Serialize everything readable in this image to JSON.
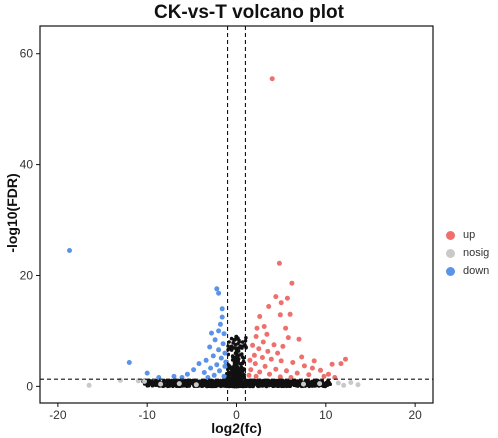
{
  "chart_data": {
    "type": "scatter",
    "title": "CK-vs-T volcano plot",
    "xlabel": "log2(fc)",
    "ylabel": "-log10(FDR)",
    "xlim": [
      -22,
      22
    ],
    "ylim": [
      -3,
      65
    ],
    "x_ticks": [
      -20,
      -10,
      0,
      10,
      20
    ],
    "y_ticks": [
      0,
      20,
      40,
      60
    ],
    "thresholds": {
      "x": [
        -1,
        1
      ],
      "y": 1.3
    },
    "grid": false,
    "legend_position": "right",
    "series": [
      {
        "name": "up",
        "color": "#EE6F6C",
        "points": [
          [
            4.0,
            55.5
          ],
          [
            4.8,
            22.2
          ],
          [
            6.2,
            18.6
          ],
          [
            4.4,
            16.2
          ],
          [
            5.0,
            15.1
          ],
          [
            3.6,
            14.4
          ],
          [
            5.7,
            15.9
          ],
          [
            6.0,
            13.0
          ],
          [
            4.9,
            12.9
          ],
          [
            2.6,
            12.6
          ],
          [
            3.1,
            10.8
          ],
          [
            5.5,
            10.5
          ],
          [
            2.3,
            10.5
          ],
          [
            7.0,
            8.5
          ],
          [
            12.2,
            4.9
          ],
          [
            11.7,
            4.1
          ],
          [
            10.7,
            4.0
          ],
          [
            2.2,
            9.0
          ],
          [
            3.0,
            8.0
          ],
          [
            4.2,
            7.5
          ],
          [
            5.2,
            7.2
          ],
          [
            2.5,
            6.8
          ],
          [
            3.5,
            6.3
          ],
          [
            4.6,
            6.0
          ],
          [
            2.0,
            5.6
          ],
          [
            2.9,
            5.2
          ],
          [
            3.9,
            4.9
          ],
          [
            5.0,
            4.6
          ],
          [
            6.3,
            4.3
          ],
          [
            7.6,
            3.7
          ],
          [
            8.5,
            3.3
          ],
          [
            9.4,
            2.9
          ],
          [
            2.1,
            4.1
          ],
          [
            3.2,
            3.6
          ],
          [
            4.4,
            3.1
          ],
          [
            5.6,
            2.8
          ],
          [
            6.8,
            2.4
          ],
          [
            8.1,
            2.1
          ],
          [
            9.8,
            1.8
          ],
          [
            1.6,
            3.0
          ],
          [
            2.6,
            2.6
          ],
          [
            3.7,
            2.2
          ],
          [
            1.4,
            2.0
          ],
          [
            2.2,
            1.8
          ],
          [
            4.9,
            1.7
          ],
          [
            6.1,
            1.6
          ],
          [
            11.0,
            1.6
          ],
          [
            1.8,
            7.4
          ],
          [
            3.4,
            9.4
          ],
          [
            5.8,
            8.8
          ],
          [
            7.3,
            5.3
          ],
          [
            8.7,
            4.6
          ],
          [
            1.5,
            4.7
          ],
          [
            10.3,
            2.2
          ]
        ]
      },
      {
        "name": "nosig",
        "color": "#C9C9C9",
        "points": [
          [
            -16.5,
            0.2
          ],
          [
            -13.0,
            1.1
          ],
          [
            -11.0,
            1.0
          ],
          [
            -10.3,
            0.9
          ],
          [
            -8.5,
            0.4
          ],
          [
            -6.4,
            0.5
          ],
          [
            -4.5,
            0.3
          ],
          [
            7.5,
            0.4
          ],
          [
            9.3,
            0.5
          ],
          [
            11.4,
            0.6
          ],
          [
            12.8,
            0.7
          ],
          [
            13.6,
            0.3
          ],
          [
            12.0,
            0.2
          ]
        ]
      },
      {
        "name": "down",
        "color": "#5B93E8",
        "points": [
          [
            -18.7,
            24.5
          ],
          [
            -2.2,
            17.6
          ],
          [
            -2.0,
            16.8
          ],
          [
            -1.6,
            12.5
          ],
          [
            -1.8,
            11.2
          ],
          [
            -2.8,
            9.6
          ],
          [
            -1.4,
            9.5
          ],
          [
            -2.4,
            8.4
          ],
          [
            -1.5,
            7.7
          ],
          [
            -3.0,
            7.1
          ],
          [
            -2.0,
            6.6
          ],
          [
            -1.3,
            6.0
          ],
          [
            -2.6,
            5.5
          ],
          [
            -1.7,
            5.1
          ],
          [
            -3.4,
            4.7
          ],
          [
            -4.2,
            4.1
          ],
          [
            -2.2,
            3.9
          ],
          [
            -1.3,
            3.6
          ],
          [
            -2.9,
            3.3
          ],
          [
            -4.8,
            3.0
          ],
          [
            -1.9,
            2.8
          ],
          [
            -3.6,
            2.5
          ],
          [
            -5.5,
            2.2
          ],
          [
            -2.5,
            2.0
          ],
          [
            -1.4,
            1.8
          ],
          [
            -12.0,
            4.3
          ],
          [
            -10.0,
            2.4
          ],
          [
            -8.7,
            1.6
          ],
          [
            -7.0,
            1.8
          ],
          [
            -6.1,
            1.6
          ],
          [
            -3.2,
            1.6
          ],
          [
            -1.2,
            4.4
          ],
          [
            -2.0,
            10.0
          ],
          [
            -1.6,
            14.0
          ]
        ]
      }
    ]
  }
}
